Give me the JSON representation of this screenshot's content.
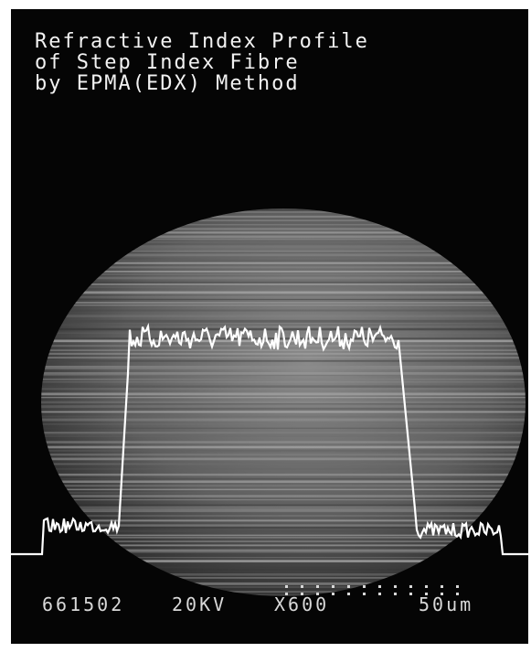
{
  "title": {
    "lines": [
      "Refractive Index Profile",
      "of Step Index Fibre",
      "by EPMA(EDX) Method"
    ]
  },
  "footer": {
    "specimen": "661502",
    "voltage": "20KV",
    "magnification": "X600",
    "scale": "50um"
  }
}
